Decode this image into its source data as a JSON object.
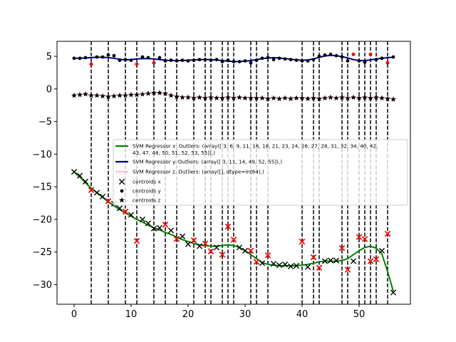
{
  "chart_data": {
    "type": "line",
    "title": "",
    "xlabel": "",
    "ylabel": "",
    "xlim": [
      -3,
      59
    ],
    "ylim": [
      -33,
      7.3
    ],
    "xticks": [
      0,
      10,
      20,
      30,
      40,
      50
    ],
    "yticks": [
      5,
      0,
      -5,
      -10,
      -15,
      -20,
      -25,
      -30
    ],
    "vlines": [
      3,
      6,
      9,
      11,
      14,
      16,
      18,
      21,
      23,
      24,
      26,
      27,
      28,
      31,
      32,
      34,
      40,
      42,
      43,
      47,
      48,
      50,
      51,
      52,
      53,
      55
    ],
    "legend_position": "center-right",
    "legend": [
      {
        "label": "SVM Regressor x. Outliers: (array([ 3,  6,  9, 11, 16, 18, 21, 23, 24, 26, 27, 28, 31, 32, 34, 40, 42,",
        "label2": "       43, 47, 48, 50, 51, 52, 53, 55]),)",
        "kind": "line",
        "color": "#008000"
      },
      {
        "label": "SVM Regressor y. Outliers: (array([ 3, 11, 14, 49, 52, 55]),)",
        "kind": "line",
        "color": "#00008b"
      },
      {
        "label": "SVM Regressor z. Outliers: (array([], dtype=int64),)",
        "kind": "line",
        "color": "#ffc0cb"
      },
      {
        "label": "centroids x",
        "kind": "x",
        "color": "#000000"
      },
      {
        "label": "centroids y",
        "kind": "dot",
        "color": "#000000"
      },
      {
        "label": "centroids z",
        "kind": "star",
        "color": "#000000"
      }
    ],
    "series": [
      {
        "name": "SVM Regressor x",
        "color": "#008000",
        "x": [
          0,
          1,
          2,
          3,
          4,
          5,
          6,
          7,
          8,
          9,
          10,
          11,
          12,
          13,
          14,
          15,
          16,
          17,
          18,
          19,
          20,
          21,
          22,
          23,
          24,
          25,
          26,
          27,
          28,
          29,
          30,
          31,
          32,
          33,
          34,
          35,
          36,
          37,
          38,
          39,
          40,
          41,
          42,
          43,
          44,
          45,
          46,
          47,
          48,
          49,
          50,
          51,
          52,
          53,
          54,
          55,
          56
        ],
        "values": [
          -12.7,
          -13.5,
          -14.4,
          -15.2,
          -15.9,
          -16.6,
          -17.3,
          -17.9,
          -18.5,
          -19.0,
          -19.5,
          -20.0,
          -20.4,
          -20.9,
          -21.3,
          -21.6,
          -22.0,
          -22.3,
          -22.7,
          -23.1,
          -23.4,
          -23.7,
          -23.9,
          -24.0,
          -24.1,
          -24.1,
          -24.0,
          -23.9,
          -24.0,
          -24.3,
          -24.8,
          -25.4,
          -26.0,
          -26.6,
          -26.9,
          -27.0,
          -27.1,
          -27.1,
          -27.1,
          -27.1,
          -27.0,
          -26.9,
          -26.7,
          -26.5,
          -26.4,
          -26.4,
          -26.4,
          -26.3,
          -26.0,
          -25.4,
          -24.8,
          -24.3,
          -24.1,
          -24.4,
          -25.3,
          -28.0,
          -31.0
        ]
      },
      {
        "name": "SVM Regressor y",
        "color": "#00008b",
        "x": [
          0,
          1,
          2,
          3,
          4,
          5,
          6,
          7,
          8,
          9,
          10,
          11,
          12,
          13,
          14,
          15,
          16,
          17,
          18,
          19,
          20,
          21,
          22,
          23,
          24,
          25,
          26,
          27,
          28,
          29,
          30,
          31,
          32,
          33,
          34,
          35,
          36,
          37,
          38,
          39,
          40,
          41,
          42,
          43,
          44,
          45,
          46,
          47,
          48,
          49,
          50,
          51,
          52,
          53,
          54,
          55,
          56
        ],
        "values": [
          4.7,
          4.7,
          4.75,
          4.8,
          4.85,
          4.85,
          4.8,
          4.7,
          4.55,
          4.45,
          4.5,
          4.6,
          4.65,
          4.65,
          4.6,
          4.5,
          4.4,
          4.35,
          4.35,
          4.35,
          4.4,
          4.45,
          4.5,
          4.5,
          4.5,
          4.45,
          4.35,
          4.25,
          4.2,
          4.2,
          4.25,
          4.35,
          4.5,
          4.65,
          4.75,
          4.8,
          4.75,
          4.65,
          4.55,
          4.45,
          4.4,
          4.45,
          4.6,
          4.85,
          5.05,
          5.15,
          5.1,
          4.95,
          4.75,
          4.5,
          4.35,
          4.35,
          4.45,
          4.6,
          4.7,
          4.8,
          4.85
        ]
      },
      {
        "name": "SVM Regressor z",
        "color": "#ffc0cb",
        "x": [
          0,
          1,
          2,
          3,
          4,
          5,
          6,
          7,
          8,
          9,
          10,
          11,
          12,
          13,
          14,
          15,
          16,
          17,
          18,
          19,
          20,
          21,
          22,
          23,
          24,
          25,
          26,
          27,
          28,
          29,
          30,
          31,
          32,
          33,
          34,
          35,
          36,
          37,
          38,
          39,
          40,
          41,
          42,
          43,
          44,
          45,
          46,
          47,
          48,
          49,
          50,
          51,
          52,
          53,
          54,
          55,
          56
        ],
        "values": [
          -0.9,
          -0.85,
          -0.85,
          -0.9,
          -0.95,
          -1.0,
          -1.05,
          -1.05,
          -1.0,
          -0.95,
          -0.95,
          -0.9,
          -0.8,
          -0.7,
          -0.65,
          -0.65,
          -0.75,
          -0.95,
          -1.1,
          -1.2,
          -1.25,
          -1.3,
          -1.3,
          -1.3,
          -1.3,
          -1.3,
          -1.3,
          -1.3,
          -1.3,
          -1.3,
          -1.3,
          -1.3,
          -1.35,
          -1.4,
          -1.4,
          -1.4,
          -1.4,
          -1.4,
          -1.4,
          -1.4,
          -1.4,
          -1.4,
          -1.4,
          -1.4,
          -1.4,
          -1.35,
          -1.35,
          -1.35,
          -1.35,
          -1.35,
          -1.35,
          -1.35,
          -1.35,
          -1.35,
          -1.4,
          -1.4,
          -1.45
        ]
      }
    ],
    "centroids_x": [
      [
        0,
        -12.7
      ],
      [
        1,
        -13.3
      ],
      [
        2,
        -14.2
      ],
      [
        3,
        -15.5
      ],
      [
        4,
        -15.9
      ],
      [
        5,
        -16.5
      ],
      [
        6,
        -17.2
      ],
      [
        7,
        -17.6
      ],
      [
        8,
        -18.3
      ],
      [
        9,
        -18.8
      ],
      [
        10,
        -19.3
      ],
      [
        11,
        -23.3
      ],
      [
        12,
        -20.0
      ],
      [
        13,
        -20.6
      ],
      [
        14,
        -21.4
      ],
      [
        15,
        -21.3
      ],
      [
        16,
        -20.8
      ],
      [
        17,
        -21.7
      ],
      [
        18,
        -23.0
      ],
      [
        19,
        -22.6
      ],
      [
        20,
        -23.8
      ],
      [
        21,
        -23.2
      ],
      [
        22,
        -24.1
      ],
      [
        23,
        -23.7
      ],
      [
        24,
        -24.9
      ],
      [
        25,
        -24.3
      ],
      [
        26,
        -25.4
      ],
      [
        27,
        -21.1
      ],
      [
        28,
        -23.1
      ],
      [
        29,
        -24.3
      ],
      [
        30,
        -24.8
      ],
      [
        31,
        -24.8
      ],
      [
        32,
        -26.5
      ],
      [
        33,
        -26.7
      ],
      [
        34,
        -25.5
      ],
      [
        35,
        -26.8
      ],
      [
        36,
        -27.0
      ],
      [
        37,
        -26.9
      ],
      [
        38,
        -27.2
      ],
      [
        39,
        -27.1
      ],
      [
        40,
        -23.4
      ],
      [
        41,
        -27.3
      ],
      [
        42,
        -25.8
      ],
      [
        43,
        -27.4
      ],
      [
        44,
        -26.4
      ],
      [
        45,
        -26.3
      ],
      [
        46,
        -26.3
      ],
      [
        47,
        -24.4
      ],
      [
        48,
        -27.7
      ],
      [
        49,
        -26.4
      ],
      [
        50,
        -22.7
      ],
      [
        51,
        -23.0
      ],
      [
        52,
        -26.4
      ],
      [
        53,
        -26.1
      ],
      [
        54,
        -24.8
      ],
      [
        55,
        -22.2
      ],
      [
        56,
        -31.2
      ]
    ],
    "centroids_y": [
      [
        0,
        4.7
      ],
      [
        1,
        4.7
      ],
      [
        2,
        4.8
      ],
      [
        3,
        3.8
      ],
      [
        4,
        4.9
      ],
      [
        5,
        4.9
      ],
      [
        6,
        5.2
      ],
      [
        7,
        5.1
      ],
      [
        8,
        4.4
      ],
      [
        9,
        4.5
      ],
      [
        10,
        4.4
      ],
      [
        11,
        3.8
      ],
      [
        12,
        4.9
      ],
      [
        13,
        4.8
      ],
      [
        14,
        4.0
      ],
      [
        15,
        4.8
      ],
      [
        16,
        4.3
      ],
      [
        17,
        4.4
      ],
      [
        18,
        4.3
      ],
      [
        19,
        4.4
      ],
      [
        20,
        4.3
      ],
      [
        21,
        4.4
      ],
      [
        22,
        4.5
      ],
      [
        23,
        4.5
      ],
      [
        24,
        4.4
      ],
      [
        25,
        4.5
      ],
      [
        26,
        4.2
      ],
      [
        27,
        4.4
      ],
      [
        28,
        4.2
      ],
      [
        29,
        4.2
      ],
      [
        30,
        4.3
      ],
      [
        31,
        4.0
      ],
      [
        32,
        4.4
      ],
      [
        33,
        4.7
      ],
      [
        34,
        4.8
      ],
      [
        35,
        4.5
      ],
      [
        36,
        4.7
      ],
      [
        37,
        4.6
      ],
      [
        38,
        4.5
      ],
      [
        39,
        4.4
      ],
      [
        40,
        4.3
      ],
      [
        41,
        4.3
      ],
      [
        42,
        4.5
      ],
      [
        43,
        5.0
      ],
      [
        44,
        5.2
      ],
      [
        45,
        5.3
      ],
      [
        46,
        5.1
      ],
      [
        47,
        4.9
      ],
      [
        48,
        4.3
      ],
      [
        49,
        5.3
      ],
      [
        50,
        4.3
      ],
      [
        51,
        4.1
      ],
      [
        52,
        5.3
      ],
      [
        53,
        4.5
      ],
      [
        54,
        4.7
      ],
      [
        55,
        4.0
      ],
      [
        56,
        4.9
      ]
    ],
    "centroids_z": [
      [
        0,
        -1.0
      ],
      [
        1,
        -0.9
      ],
      [
        2,
        -0.8
      ],
      [
        3,
        -1.0
      ],
      [
        4,
        -1.0
      ],
      [
        5,
        -1.1
      ],
      [
        6,
        -1.2
      ],
      [
        7,
        -1.1
      ],
      [
        8,
        -1.0
      ],
      [
        9,
        -1.0
      ],
      [
        10,
        -0.9
      ],
      [
        11,
        -0.9
      ],
      [
        12,
        -0.8
      ],
      [
        13,
        -0.7
      ],
      [
        14,
        -0.6
      ],
      [
        15,
        -0.6
      ],
      [
        16,
        -0.7
      ],
      [
        17,
        -1.0
      ],
      [
        18,
        -1.2
      ],
      [
        19,
        -1.3
      ],
      [
        20,
        -1.3
      ],
      [
        21,
        -1.4
      ],
      [
        22,
        -1.3
      ],
      [
        23,
        -1.4
      ],
      [
        24,
        -1.3
      ],
      [
        25,
        -1.4
      ],
      [
        26,
        -1.4
      ],
      [
        27,
        -1.3
      ],
      [
        28,
        -1.4
      ],
      [
        29,
        -1.3
      ],
      [
        30,
        -1.4
      ],
      [
        31,
        -1.4
      ],
      [
        32,
        -1.4
      ],
      [
        33,
        -1.4
      ],
      [
        34,
        -1.5
      ],
      [
        35,
        -1.4
      ],
      [
        36,
        -1.5
      ],
      [
        37,
        -1.4
      ],
      [
        38,
        -1.5
      ],
      [
        39,
        -1.4
      ],
      [
        40,
        -1.4
      ],
      [
        41,
        -1.5
      ],
      [
        42,
        -1.4
      ],
      [
        43,
        -1.5
      ],
      [
        44,
        -1.4
      ],
      [
        45,
        -1.3
      ],
      [
        46,
        -1.4
      ],
      [
        47,
        -1.3
      ],
      [
        48,
        -1.4
      ],
      [
        49,
        -1.3
      ],
      [
        50,
        -1.4
      ],
      [
        51,
        -1.3
      ],
      [
        52,
        -1.4
      ],
      [
        53,
        -1.3
      ],
      [
        54,
        -1.4
      ],
      [
        55,
        -1.5
      ],
      [
        56,
        -1.6
      ]
    ],
    "outliers_x": [
      3,
      6,
      9,
      11,
      16,
      18,
      21,
      23,
      24,
      26,
      27,
      28,
      31,
      32,
      34,
      40,
      42,
      43,
      47,
      48,
      50,
      51,
      52,
      53,
      55
    ],
    "outliers_y": [
      3,
      11,
      14,
      49,
      52,
      55
    ],
    "outlier_color": "#ff0000"
  }
}
